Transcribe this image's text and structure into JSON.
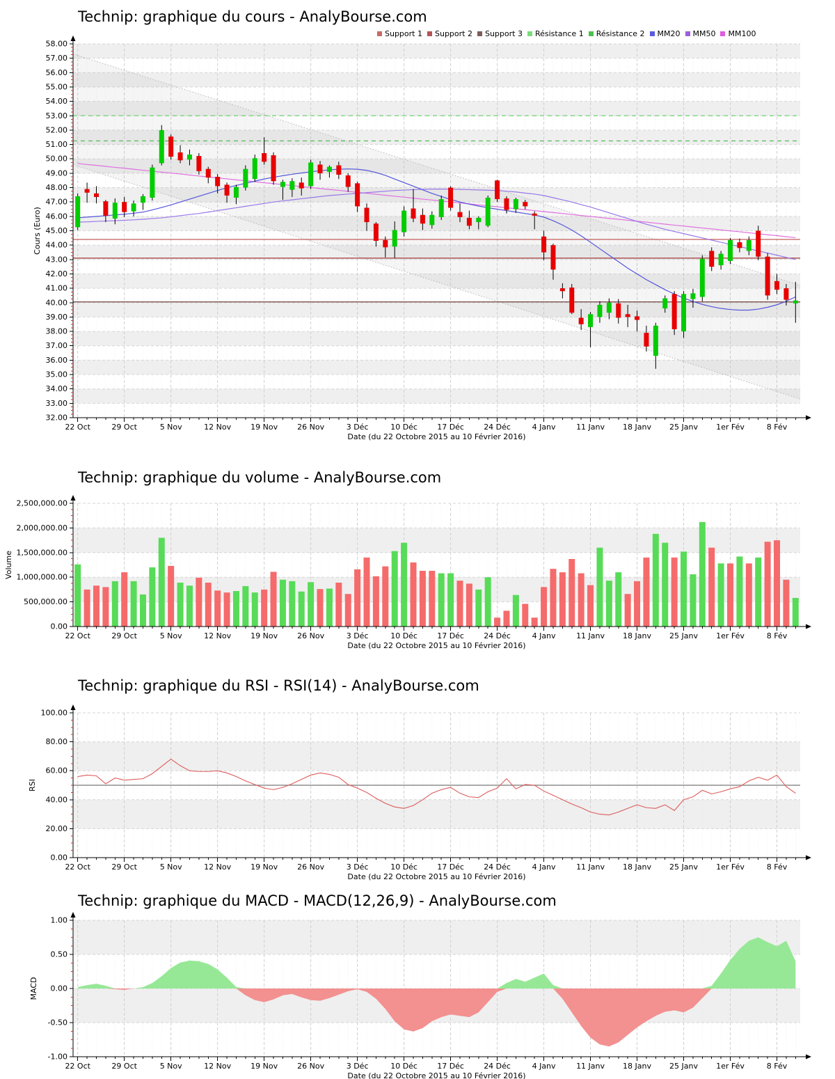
{
  "legend": {
    "items": [
      {
        "label": "Support 1",
        "color": "#C96A6A"
      },
      {
        "label": "Support 2",
        "color": "#B25555"
      },
      {
        "label": "Support 3",
        "color": "#7D5B5B"
      },
      {
        "label": "Résistance 1",
        "color": "#7ADB7A"
      },
      {
        "label": "Résistance 2",
        "color": "#4CC24C"
      },
      {
        "label": "MM20",
        "color": "#5A5AE0"
      },
      {
        "label": "MM50",
        "color": "#9B5FE0"
      },
      {
        "label": "MM100",
        "color": "#E05CE0"
      }
    ]
  },
  "palette": {
    "candle_up": "#00CC00",
    "candle_down": "#E80000",
    "wick": "#000000",
    "volume_up": "#58DB58",
    "volume_down": "#F56B6B",
    "rsi_line": "#DD5C5C",
    "rsi_baseline": "#777777",
    "macd_up": "#96E896",
    "macd_down": "#F39090",
    "mm20": "#5555DD",
    "mm50": "#9977E8",
    "mm100": "#E070E0",
    "grid": "#D6D6D6",
    "day_grid": "#ECECEC",
    "stripe": "#EFEFEF",
    "channel": "#B5B5B5",
    "axis": "#000000",
    "minor_tick": "#CC3333"
  },
  "x_axis": {
    "title": "Date (du 22 Octobre 2015 au 10 Février 2016)",
    "tick_labels": [
      "22 Oct",
      "29 Oct",
      "5 Nov",
      "12 Nov",
      "19 Nov",
      "26 Nov",
      "3 Déc",
      "10 Déc",
      "17 Déc",
      "24 Déc",
      "4 Janv",
      "11 Janv",
      "18 Janv",
      "25 Janv",
      "1er Fév",
      "8 Fév"
    ],
    "tick_days": [
      0,
      5,
      10,
      15,
      20,
      25,
      30,
      35,
      40,
      45,
      50,
      55,
      60,
      65,
      70,
      75
    ]
  },
  "chart_data": [
    {
      "type": "candlestick",
      "title": "Technip: graphique du cours - AnalyBourse.com",
      "ylabel": "Cours (Euro)",
      "xlabel": "Date (du 22 Octobre 2015 au 10 Février 2016)",
      "ylim": [
        32,
        58
      ],
      "ystep": 1,
      "ohlc": [
        [
          45.25,
          47.6,
          45.05,
          47.4
        ],
        [
          47.9,
          48.35,
          46.95,
          47.65
        ],
        [
          47.6,
          48.1,
          46.9,
          47.35
        ],
        [
          47.05,
          47.15,
          45.6,
          46.05
        ],
        [
          45.85,
          47.25,
          45.45,
          46.95
        ],
        [
          47.0,
          47.35,
          45.95,
          46.3
        ],
        [
          46.35,
          47.1,
          46.0,
          46.9
        ],
        [
          46.95,
          47.55,
          46.45,
          47.4
        ],
        [
          47.3,
          49.6,
          47.1,
          49.4
        ],
        [
          49.7,
          52.35,
          49.55,
          52.0
        ],
        [
          51.55,
          51.7,
          49.95,
          50.15
        ],
        [
          50.45,
          50.95,
          49.7,
          49.9
        ],
        [
          49.95,
          50.65,
          49.55,
          50.3
        ],
        [
          50.2,
          50.4,
          48.9,
          49.15
        ],
        [
          49.3,
          49.45,
          48.3,
          48.7
        ],
        [
          48.75,
          48.95,
          47.6,
          48.1
        ],
        [
          48.2,
          48.35,
          46.95,
          47.45
        ],
        [
          47.3,
          48.2,
          46.85,
          48.05
        ],
        [
          48.0,
          49.55,
          47.8,
          49.3
        ],
        [
          48.6,
          50.3,
          48.4,
          50.05
        ],
        [
          50.4,
          51.5,
          49.6,
          49.8
        ],
        [
          50.25,
          50.45,
          48.2,
          48.45
        ],
        [
          48.05,
          48.55,
          47.15,
          48.4
        ],
        [
          47.85,
          48.65,
          47.35,
          48.45
        ],
        [
          48.35,
          48.7,
          47.45,
          47.95
        ],
        [
          48.1,
          49.95,
          47.9,
          49.75
        ],
        [
          49.6,
          49.85,
          48.55,
          49.0
        ],
        [
          49.1,
          49.55,
          48.7,
          49.45
        ],
        [
          49.55,
          49.8,
          48.6,
          48.9
        ],
        [
          48.85,
          49.0,
          47.7,
          48.05
        ],
        [
          48.3,
          48.4,
          46.3,
          46.7
        ],
        [
          46.6,
          46.9,
          45.0,
          45.6
        ],
        [
          45.5,
          45.6,
          43.9,
          44.3
        ],
        [
          44.35,
          44.6,
          43.15,
          43.85
        ],
        [
          43.9,
          45.65,
          43.1,
          45.05
        ],
        [
          44.9,
          46.7,
          44.6,
          46.4
        ],
        [
          46.55,
          47.9,
          45.6,
          45.85
        ],
        [
          46.1,
          46.55,
          45.05,
          45.5
        ],
        [
          45.4,
          46.35,
          45.15,
          46.1
        ],
        [
          45.95,
          47.45,
          45.75,
          47.2
        ],
        [
          48.0,
          48.1,
          46.4,
          46.6
        ],
        [
          46.3,
          46.9,
          45.6,
          45.95
        ],
        [
          45.9,
          46.4,
          45.1,
          45.35
        ],
        [
          45.6,
          46.0,
          45.1,
          45.9
        ],
        [
          45.35,
          47.45,
          45.25,
          47.3
        ],
        [
          48.5,
          48.55,
          47.0,
          47.2
        ],
        [
          47.25,
          47.4,
          46.2,
          46.45
        ],
        [
          46.5,
          47.3,
          46.25,
          47.2
        ],
        [
          47.0,
          47.15,
          46.5,
          46.7
        ],
        [
          46.2,
          46.35,
          45.1,
          46.05
        ],
        [
          44.6,
          45.0,
          42.95,
          43.5
        ],
        [
          44.0,
          44.1,
          41.6,
          42.3
        ],
        [
          41.0,
          41.35,
          40.3,
          40.8
        ],
        [
          41.05,
          41.3,
          39.2,
          39.3
        ],
        [
          38.95,
          39.55,
          38.1,
          38.5
        ],
        [
          38.3,
          39.35,
          36.9,
          39.2
        ],
        [
          39.0,
          40.1,
          38.6,
          39.85
        ],
        [
          39.3,
          40.3,
          38.85,
          40.0
        ],
        [
          39.95,
          40.25,
          38.55,
          38.95
        ],
        [
          39.2,
          39.85,
          38.3,
          39.0
        ],
        [
          39.05,
          39.45,
          38.0,
          38.8
        ],
        [
          37.9,
          38.4,
          36.6,
          36.95
        ],
        [
          36.3,
          38.6,
          35.4,
          38.4
        ],
        [
          39.6,
          40.5,
          39.3,
          40.3
        ],
        [
          40.6,
          40.8,
          37.75,
          38.15
        ],
        [
          38.0,
          40.8,
          37.55,
          40.6
        ],
        [
          40.25,
          40.95,
          39.65,
          40.65
        ],
        [
          40.4,
          43.3,
          40.1,
          43.05
        ],
        [
          43.6,
          43.85,
          42.2,
          42.5
        ],
        [
          42.6,
          43.6,
          42.3,
          43.4
        ],
        [
          42.9,
          44.5,
          42.7,
          44.35
        ],
        [
          44.2,
          44.45,
          43.5,
          43.8
        ],
        [
          43.6,
          44.6,
          43.3,
          44.35
        ],
        [
          45.0,
          45.35,
          42.95,
          43.2
        ],
        [
          43.2,
          43.45,
          40.2,
          40.5
        ],
        [
          41.5,
          42.0,
          40.6,
          40.9
        ],
        [
          41.0,
          41.3,
          39.8,
          40.2
        ],
        [
          39.95,
          41.45,
          38.6,
          40.15
        ]
      ],
      "overlays": {
        "mm20": [
          45.9,
          45.95,
          46.0,
          46.05,
          46.1,
          46.15,
          46.22,
          46.3,
          46.45,
          46.62,
          46.8,
          47.0,
          47.2,
          47.4,
          47.6,
          47.8,
          48.0,
          48.15,
          48.3,
          48.45,
          48.6,
          48.72,
          48.83,
          48.93,
          49.02,
          49.1,
          49.18,
          49.24,
          49.28,
          49.3,
          49.28,
          49.2,
          49.05,
          48.85,
          48.6,
          48.35,
          48.1,
          47.85,
          47.6,
          47.38,
          47.18,
          47.0,
          46.85,
          46.72,
          46.6,
          46.5,
          46.4,
          46.3,
          46.2,
          46.1,
          45.95,
          45.7,
          45.4,
          45.05,
          44.65,
          44.2,
          43.75,
          43.3,
          42.85,
          42.4,
          42.0,
          41.6,
          41.25,
          40.9,
          40.6,
          40.32,
          40.08,
          39.88,
          39.72,
          39.6,
          39.52,
          39.48,
          39.48,
          39.55,
          39.68,
          39.85,
          40.1,
          40.4
        ],
        "mm50": [
          45.6,
          45.62,
          45.65,
          45.68,
          45.7,
          45.73,
          45.76,
          45.8,
          45.85,
          45.9,
          45.97,
          46.05,
          46.13,
          46.2,
          46.3,
          46.4,
          46.5,
          46.6,
          46.7,
          46.8,
          46.9,
          47.0,
          47.08,
          47.15,
          47.23,
          47.3,
          47.38,
          47.45,
          47.5,
          47.55,
          47.6,
          47.65,
          47.7,
          47.75,
          47.8,
          47.83,
          47.86,
          47.88,
          47.9,
          47.9,
          47.9,
          47.88,
          47.86,
          47.84,
          47.82,
          47.8,
          47.75,
          47.7,
          47.62,
          47.55,
          47.45,
          47.3,
          47.15,
          47.0,
          46.82,
          46.65,
          46.45,
          46.25,
          46.05,
          45.85,
          45.65,
          45.45,
          45.28,
          45.1,
          44.95,
          44.8,
          44.65,
          44.5,
          44.35,
          44.2,
          44.05,
          43.9,
          43.75,
          43.6,
          43.45,
          43.3,
          43.15,
          43.0
        ],
        "mm100": [
          49.68,
          49.61,
          49.55,
          49.48,
          49.41,
          49.35,
          49.28,
          49.21,
          49.15,
          49.08,
          49.01,
          48.95,
          48.88,
          48.81,
          48.74,
          48.68,
          48.61,
          48.54,
          48.48,
          48.41,
          48.34,
          48.28,
          48.21,
          48.14,
          48.07,
          48.01,
          47.94,
          47.87,
          47.81,
          47.74,
          47.67,
          47.61,
          47.54,
          47.47,
          47.4,
          47.34,
          47.27,
          47.2,
          47.14,
          47.07,
          47.0,
          46.94,
          46.87,
          46.8,
          46.73,
          46.67,
          46.6,
          46.53,
          46.47,
          46.4,
          46.33,
          46.27,
          46.2,
          46.13,
          46.06,
          46.0,
          45.93,
          45.86,
          45.8,
          45.73,
          45.66,
          45.6,
          45.53,
          45.46,
          45.39,
          45.33,
          45.26,
          45.19,
          45.13,
          45.06,
          44.99,
          44.93,
          44.86,
          44.79,
          44.72,
          44.66,
          44.59,
          44.52
        ],
        "support_lines": [
          {
            "label": "Support 1",
            "value": 44.4,
            "color": "#C96A6A"
          },
          {
            "label": "Support 2",
            "value": 43.1,
            "color": "#B25555"
          },
          {
            "label": "Support 3",
            "value": 40.05,
            "color": "#7D4F4F"
          }
        ],
        "resistance_lines": [
          {
            "label": "Résistance 1",
            "value": 53.0,
            "color": "#6FD46F"
          },
          {
            "label": "Résistance 2",
            "value": 51.25,
            "color": "#49B849"
          }
        ],
        "trend_channel": {
          "upper_start": 57.3,
          "upper_end": 41.2,
          "lower_start": 49.6,
          "lower_end": 33.3
        }
      }
    },
    {
      "type": "bar",
      "title": "Technip: graphique du volume - AnalyBourse.com",
      "ylabel": "Volume",
      "xlabel": "Date (du 22 Octobre 2015 au 10 Février 2016)",
      "ylim": [
        0,
        2500000
      ],
      "ystep": 500000,
      "values": [
        1260000,
        750000,
        830000,
        800000,
        920000,
        1100000,
        920000,
        650000,
        1200000,
        1800000,
        1230000,
        890000,
        830000,
        990000,
        890000,
        730000,
        690000,
        720000,
        820000,
        690000,
        750000,
        1110000,
        950000,
        920000,
        710000,
        900000,
        760000,
        770000,
        890000,
        660000,
        1160000,
        1400000,
        1020000,
        1220000,
        1530000,
        1700000,
        1300000,
        1130000,
        1130000,
        1080000,
        1080000,
        930000,
        870000,
        750000,
        1000000,
        180000,
        320000,
        640000,
        460000,
        180000,
        800000,
        1170000,
        1100000,
        1370000,
        1080000,
        840000,
        1600000,
        930000,
        1100000,
        660000,
        920000,
        1400000,
        1880000,
        1700000,
        1400000,
        1520000,
        1060000,
        2120000,
        1600000,
        1280000,
        1280000,
        1420000,
        1280000,
        1400000,
        1720000,
        1750000,
        950000,
        580000
      ],
      "colors": "grrrgrggggrggrrrrgggrrggggrgrrrrrrggrrrggrrggrrgrrrrrrrrgggrrrggrgggrgrgrgrrrg"
    },
    {
      "type": "line",
      "title": "Technip: graphique du RSI - RSI(14) - AnalyBourse.com",
      "series_name": "RSI(14)",
      "ylabel": "RSI",
      "xlabel": "Date (du 22 Octobre 2015 au 10 Février 2016)",
      "ylim": [
        0,
        100
      ],
      "ystep": 20,
      "baseline": 50,
      "values": [
        56,
        57,
        56.5,
        51,
        55,
        53.5,
        54,
        54.5,
        58,
        63,
        68,
        63.5,
        60,
        59.5,
        59.5,
        60,
        58.5,
        56,
        53,
        50.5,
        48,
        47,
        48.5,
        51,
        54,
        57,
        58.5,
        57.5,
        55.5,
        50.5,
        48,
        45,
        41,
        37.5,
        35,
        34,
        36,
        40,
        44.5,
        47,
        48.5,
        44.5,
        42,
        41.5,
        45.5,
        48,
        54.5,
        47.5,
        50.5,
        50,
        46,
        43,
        40,
        37,
        34.5,
        31.5,
        30,
        29.5,
        31.5,
        34,
        36.5,
        34.5,
        34,
        36.5,
        32.5,
        40,
        42,
        46.5,
        44,
        45.5,
        47.5,
        49,
        53,
        55.5,
        53.5,
        57,
        49,
        44.5
      ]
    },
    {
      "type": "area",
      "title": "Technip: graphique du MACD - MACD(12,26,9) - AnalyBourse.com",
      "series_name": "MACD(12,26,9)",
      "ylabel": "MACD",
      "xlabel": "Date (du 22 Octobre 2015 au 10 Février 2016)",
      "ylim": [
        -1,
        1
      ],
      "ystep": 0.5,
      "values": [
        0.02,
        0.05,
        0.07,
        0.04,
        -0.01,
        -0.02,
        0.0,
        0.02,
        0.08,
        0.18,
        0.3,
        0.38,
        0.41,
        0.4,
        0.36,
        0.28,
        0.16,
        0.02,
        -0.1,
        -0.17,
        -0.2,
        -0.16,
        -0.1,
        -0.08,
        -0.13,
        -0.17,
        -0.18,
        -0.14,
        -0.09,
        -0.04,
        -0.01,
        -0.05,
        -0.15,
        -0.3,
        -0.48,
        -0.6,
        -0.63,
        -0.58,
        -0.48,
        -0.42,
        -0.38,
        -0.4,
        -0.42,
        -0.35,
        -0.2,
        -0.05,
        0.08,
        0.14,
        0.1,
        0.16,
        0.22,
        0.05,
        -0.15,
        -0.35,
        -0.55,
        -0.72,
        -0.82,
        -0.85,
        -0.79,
        -0.68,
        -0.57,
        -0.48,
        -0.4,
        -0.34,
        -0.32,
        -0.35,
        -0.28,
        -0.14,
        0.04,
        0.22,
        0.42,
        0.58,
        0.7,
        0.75,
        0.68,
        0.62,
        0.7,
        0.4
      ]
    }
  ]
}
